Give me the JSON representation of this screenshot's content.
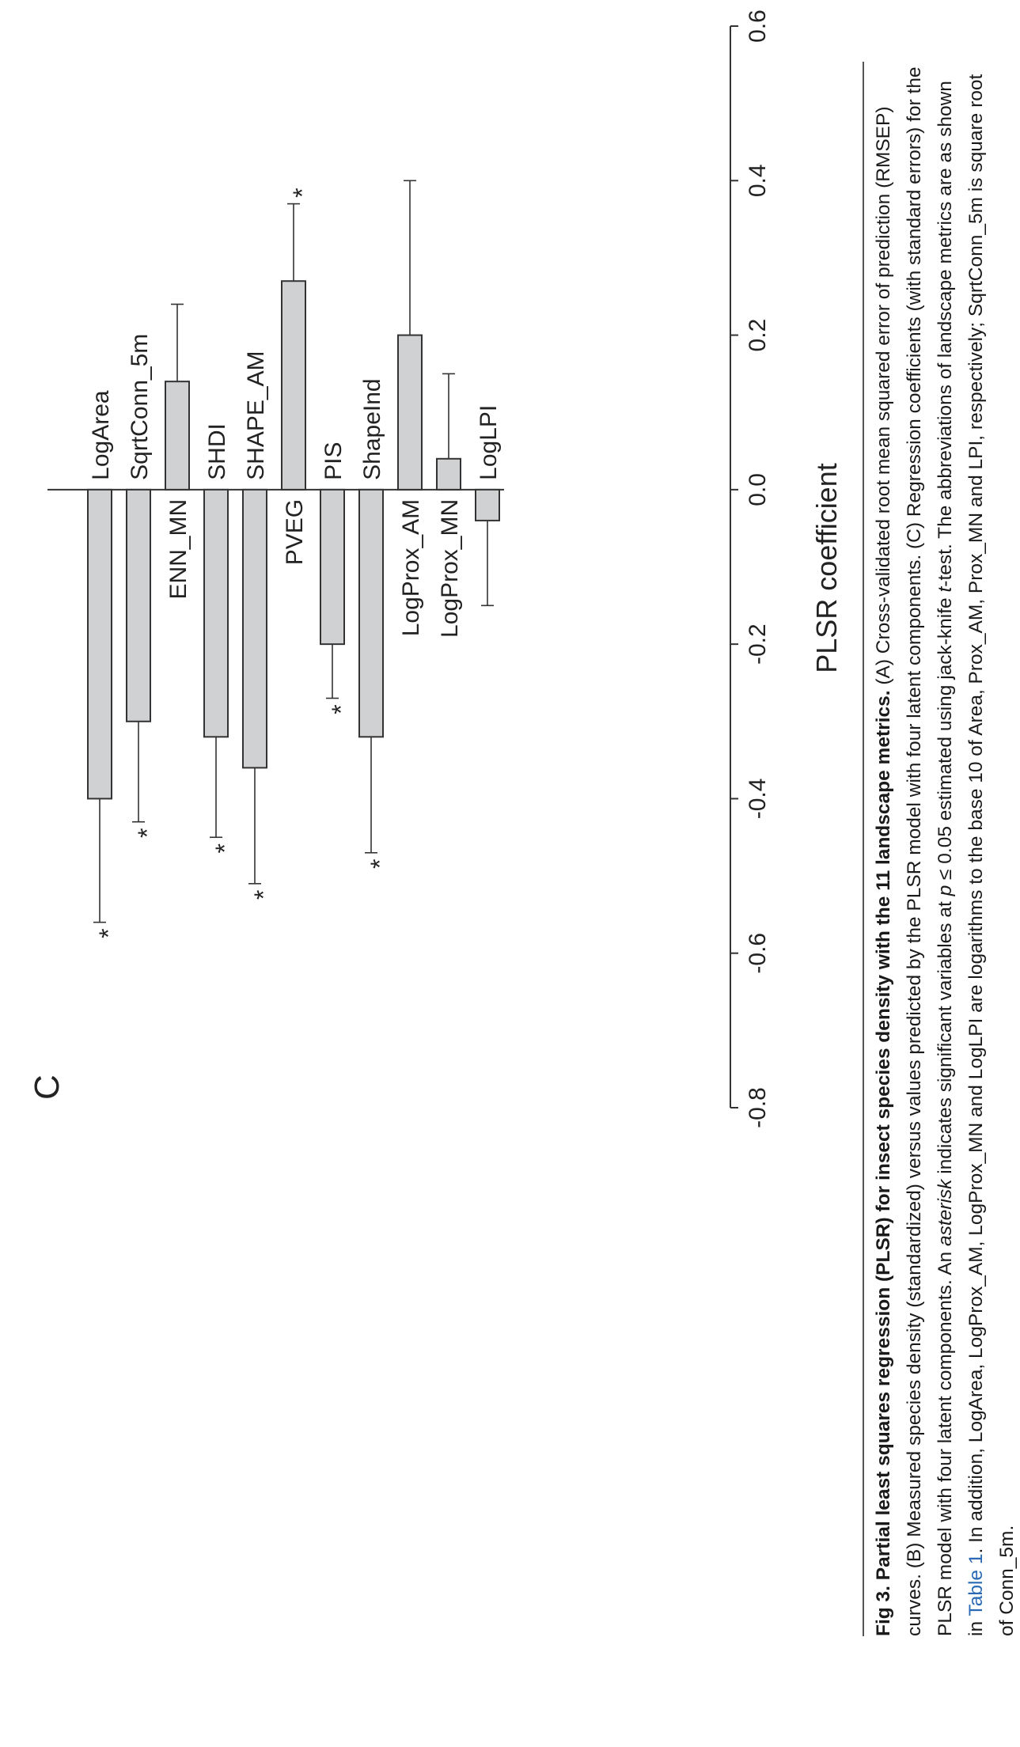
{
  "panel_label": "C",
  "chart_data": {
    "type": "bar",
    "orientation": "horizontal",
    "categories": [
      "LogArea",
      "SqrtConn_5m",
      "ENN_MN",
      "SHDI",
      "SHAPE_AM",
      "PVEG",
      "PIS",
      "ShapeInd",
      "LogProx_AM",
      "LogProx_MN",
      "LogLPI"
    ],
    "values": [
      -0.4,
      -0.3,
      0.14,
      -0.32,
      -0.36,
      0.27,
      -0.2,
      -0.32,
      0.2,
      0.04,
      -0.04
    ],
    "errors": [
      0.16,
      0.13,
      0.1,
      0.13,
      0.15,
      0.1,
      0.07,
      0.15,
      0.2,
      0.11,
      0.11
    ],
    "significant": [
      true,
      true,
      false,
      true,
      true,
      true,
      true,
      true,
      false,
      false,
      false
    ],
    "significance_marker": "*",
    "xlabel": "PLSR coefficient",
    "xlim": [
      -0.8,
      0.6
    ],
    "ticks": [
      "-0.8",
      "-0.6",
      "-0.4",
      "-0.2",
      "0.0",
      "0.2",
      "0.4",
      "0.6"
    ],
    "tick_values": [
      -0.8,
      -0.6,
      -0.4,
      -0.2,
      0.0,
      0.2,
      0.4,
      0.6
    ],
    "colors": {
      "bar_fill": "#cfd1d3",
      "bar_stroke": "#333333"
    }
  },
  "caption": {
    "fig_label": "Fig 3.",
    "title": "Partial least squares regression (PLSR) for insect species density with the 11 landscape metrics.",
    "text_1": "(A) Cross-validated root mean squared error of prediction (RMSEP) curves. (B) Measured species density (standardized) versus values predicted by the PLSR model with four latent components. (C) Regression coefficients (with standard errors) for the PLSR model with four latent components. An",
    "asterisk_word": "asterisk",
    "text_2": "indicates significant variables at",
    "p_symbol": "p",
    "text_3": "≤ 0.05 estimated using jack-knife",
    "t_symbol": "t",
    "text_4": "-test. The abbreviations of landscape metrics are as shown in",
    "table_link": "Table 1",
    "text_5": ". In addition, LogArea, LogProx_AM, LogProx_MN and LogLPI are logarithms to the base 10 of Area, Prox_AM, Prox_MN and LPI, respectively; SqrtConn_5m is square root of Conn_5m."
  }
}
